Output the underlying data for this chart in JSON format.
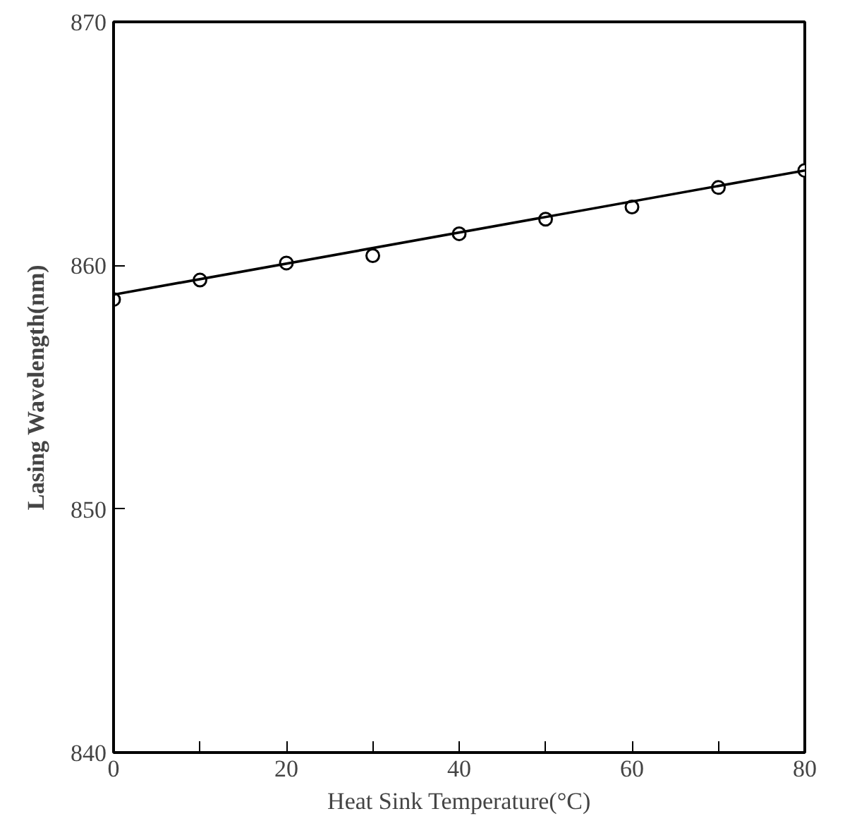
{
  "chart_data": {
    "type": "scatter",
    "xlabel": "Heat Sink Temperature(°C)",
    "ylabel": "Lasing Wavelength(nm)",
    "x": [
      0,
      10,
      20,
      30,
      40,
      50,
      60,
      70,
      80
    ],
    "series": [
      {
        "color": "#000000",
        "marker": "circle",
        "values": [
          858.6,
          859.4,
          860.1,
          860.4,
          861.3,
          861.9,
          862.4,
          863.2,
          863.9
        ]
      },
      {
        "type": "line",
        "color": "#000000",
        "x": [
          0,
          80
        ],
        "values": [
          858.8,
          863.9
        ]
      }
    ],
    "xlim": [
      0,
      80
    ],
    "ylim": [
      840,
      870
    ],
    "xticks": [
      0,
      {
        "value": 10,
        "label": null
      },
      20,
      {
        "value": 30,
        "label": null
      },
      40,
      {
        "value": 50,
        "label": null
      },
      60,
      {
        "value": 70,
        "label": null
      },
      80
    ],
    "yticks": [
      840,
      850,
      860,
      870
    ],
    "grid": false
  }
}
